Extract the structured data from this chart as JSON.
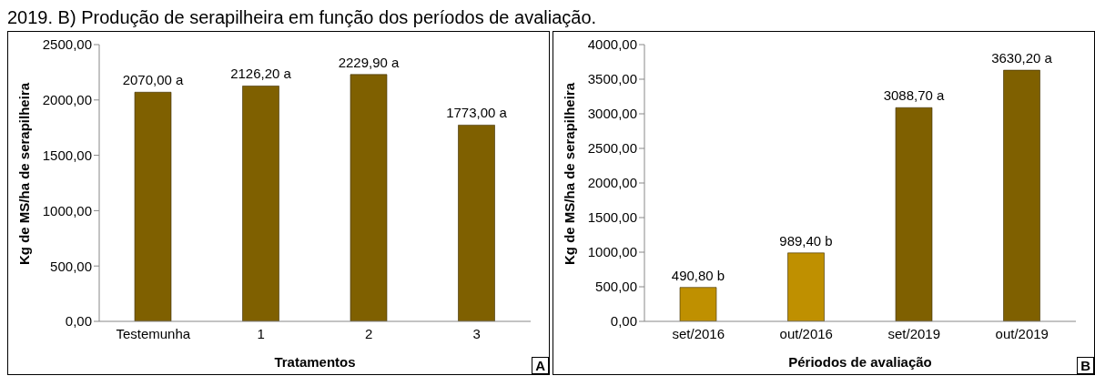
{
  "chart_data": [
    {
      "type": "bar",
      "annotations": [
        "2019. B) Produção de serapilheira em função dos períodos de avaliação.",
        "A"
      ],
      "xlabel": "Tratamentos",
      "ylabel": "Kg de MS/ha de serapilheira",
      "categories": [
        "Testemunha",
        "1",
        "2",
        "3"
      ],
      "values": [
        2070.0,
        2126.2,
        2229.9,
        1773.0
      ],
      "color": "#7f6000",
      "value_labels": [
        "2070,00 a",
        "2126,20 a",
        "2229,90 a",
        "1773,00 a"
      ],
      "ylim": [
        0,
        2500
      ],
      "yticks": [
        {
          "value": 0,
          "label": "0,00"
        },
        {
          "value": 500,
          "label": "500,00"
        },
        {
          "value": 1000,
          "label": "1000,00"
        },
        {
          "value": 1500,
          "label": "1500,00"
        },
        {
          "value": 2000,
          "label": "2000,00"
        },
        {
          "value": 2500,
          "label": "2500,00"
        }
      ],
      "grid": false,
      "legend": false
    },
    {
      "type": "bar",
      "annotations": [
        "B"
      ],
      "xlabel": "Périodos de avaliação",
      "ylabel": "Kg de MS/ha de serapilheira",
      "categories": [
        "set/2016",
        "out/2016",
        "set/2019",
        "out/2019"
      ],
      "values": [
        490.8,
        989.4,
        3088.7,
        3630.2
      ],
      "colors": [
        "#bf9000",
        "#bf9000",
        "#7f6000",
        "#7f6000"
      ],
      "value_labels": [
        "490,80 b",
        "989,40 b",
        "3088,70 a",
        "3630,20 a"
      ],
      "ylim": [
        0,
        4000
      ],
      "yticks": [
        {
          "value": 0,
          "label": "0,00"
        },
        {
          "value": 500,
          "label": "500,00"
        },
        {
          "value": 1000,
          "label": "1000,00"
        },
        {
          "value": 1500,
          "label": "1500,00"
        },
        {
          "value": 2000,
          "label": "2000,00"
        },
        {
          "value": 2500,
          "label": "2500,00"
        },
        {
          "value": 3000,
          "label": "3000,00"
        },
        {
          "value": 3500,
          "label": "3500,00"
        },
        {
          "value": 4000,
          "label": "4000,00"
        }
      ],
      "grid": false,
      "legend": false
    }
  ]
}
